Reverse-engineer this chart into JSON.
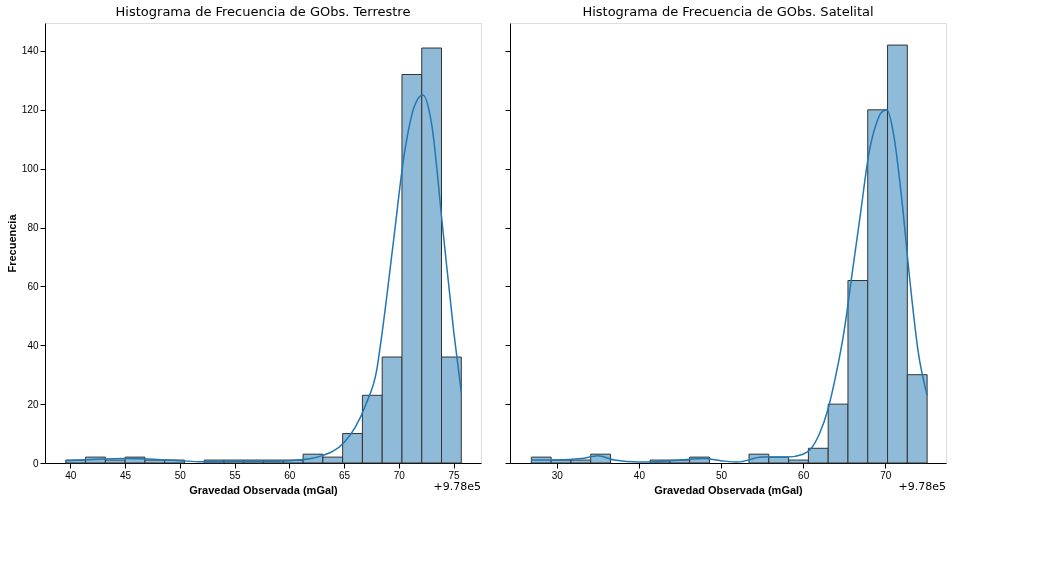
{
  "chart_data": [
    {
      "type": "histogram",
      "title": "Histograma de Frecuencia de GObs. Terrestre",
      "xlabel": "Gravedad Observada (mGal)",
      "ylabel": "Frecuencia",
      "annotations": [
        "+9.78e5"
      ],
      "bins": [
        39.6,
        41.405,
        43.21,
        45.015,
        46.82,
        48.625,
        50.43,
        52.235,
        54.04,
        55.845,
        57.65,
        59.455,
        61.26,
        63.065,
        64.87,
        66.675,
        68.48,
        70.285,
        72.09,
        73.895,
        75.7
      ],
      "values": [
        1,
        2,
        1,
        2,
        1,
        1,
        0,
        1,
        1,
        1,
        1,
        1,
        3,
        2,
        10,
        23,
        36,
        132,
        141,
        36
      ],
      "color": "#8fbbd9",
      "series": [
        {
          "type": "line",
          "color": "#1f77b4",
          "x": [
            39.6,
            42,
            45,
            48,
            50,
            52,
            55,
            58,
            60,
            62,
            63,
            64,
            65,
            66,
            67,
            68,
            68.5,
            69.5,
            70.5,
            71.5,
            72.2,
            73,
            74,
            75,
            75.7
          ],
          "values": [
            0.8,
            1.2,
            1.5,
            1.2,
            0.8,
            0.4,
            0.6,
            0.6,
            0.8,
            1.5,
            2.5,
            4,
            7,
            12,
            20,
            32,
            45,
            75,
            105,
            122,
            125,
            115,
            80,
            45,
            24
          ]
        }
      ],
      "xlim": [
        37.7,
        77.5
      ],
      "xticks": [
        40,
        45,
        50,
        55,
        60,
        65,
        70,
        75
      ],
      "ylim": [
        0,
        149.5
      ],
      "yticks": [
        0,
        20,
        40,
        60,
        80,
        100,
        120,
        140
      ],
      "grid": false
    },
    {
      "type": "histogram",
      "title": "Histograma de Frecuencia de GObs. Satelital",
      "xlabel": "Gravedad Observada (mGal)",
      "annotations": [
        "+9.78e5"
      ],
      "bins": [
        26.9,
        29.31,
        31.72,
        34.13,
        36.54,
        38.95,
        41.36,
        43.77,
        46.18,
        48.59,
        51.0,
        53.41,
        55.82,
        58.23,
        60.64,
        63.05,
        65.46,
        67.87,
        70.28,
        72.69,
        75.1
      ],
      "values": [
        2,
        1,
        1,
        3,
        0,
        0,
        1,
        1,
        2,
        0,
        0,
        3,
        2,
        1,
        5,
        20,
        62,
        120,
        142,
        30
      ],
      "color": "#8fbbd9",
      "series": [
        {
          "type": "line",
          "color": "#1f77b4",
          "x": [
            26.9,
            30,
            33,
            35,
            37,
            40,
            43,
            45,
            48,
            50,
            52,
            55,
            58,
            60,
            61,
            62,
            63,
            64,
            65,
            66,
            67,
            68,
            69,
            69.5,
            70.2,
            71,
            72,
            73,
            74,
            75.1
          ],
          "values": [
            1,
            1,
            1.5,
            2.5,
            1,
            0.3,
            0.6,
            1,
            1.5,
            0.8,
            0.3,
            2,
            2,
            3,
            5,
            10,
            18,
            30,
            45,
            65,
            85,
            105,
            116,
            119,
            120,
            112,
            90,
            62,
            38,
            23
          ]
        }
      ],
      "xlim": [
        24.3,
        77.4
      ],
      "xticks": [
        30,
        40,
        50,
        60,
        70
      ],
      "ylim": [
        0,
        149.5
      ],
      "yticks": [
        0,
        20,
        40,
        60,
        80,
        100,
        120,
        140
      ],
      "tick_labels": "x",
      "grid": false
    }
  ]
}
